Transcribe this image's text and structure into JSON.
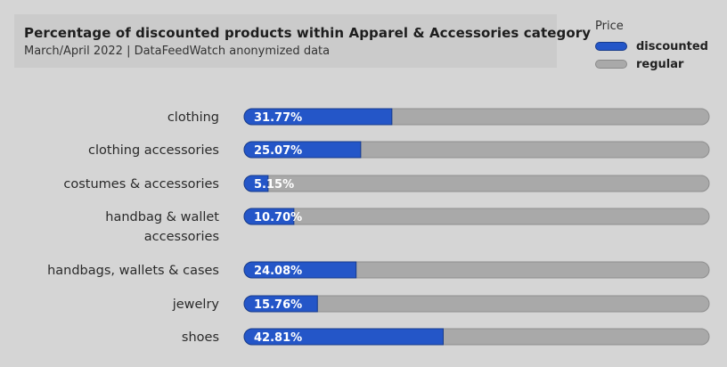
{
  "header": {
    "title": "Percentage of discounted products within Apparel & Accessories category",
    "subtitle": "March/April 2022 | DataFeedWatch anonymized data"
  },
  "legend": {
    "title": "Price",
    "items": [
      {
        "label": "discounted",
        "color": "#2456c8"
      },
      {
        "label": "regular",
        "color": "#a9a9a9"
      }
    ]
  },
  "chart_data": {
    "type": "bar",
    "orientation": "horizontal",
    "stacked": true,
    "title": "Percentage of discounted products within Apparel & Accessories category",
    "subtitle": "March/April 2022 | DataFeedWatch anonymized data",
    "legend_title": "Price",
    "legend_position": "top-right",
    "categories": [
      [
        "clothing"
      ],
      [
        "clothing accessories"
      ],
      [
        "costumes & accessories"
      ],
      [
        "handbag & wallet",
        "accessories"
      ],
      [
        "handbags, wallets & cases"
      ],
      [
        "jewelry"
      ],
      [
        "shoes"
      ]
    ],
    "series": [
      {
        "name": "discounted",
        "color": "#2456c8",
        "values": [
          31.77,
          25.07,
          5.15,
          10.7,
          24.08,
          15.76,
          42.81
        ],
        "labels": [
          "31.77%",
          "25.07%",
          "5.15%",
          "10.70%",
          "24.08%",
          "15.76%",
          "42.81%"
        ]
      },
      {
        "name": "regular",
        "color": "#a9a9a9",
        "values": [
          68.23,
          74.93,
          94.85,
          89.3,
          75.92,
          84.24,
          57.19
        ]
      }
    ],
    "xlim": [
      0,
      100
    ],
    "grid": false
  }
}
